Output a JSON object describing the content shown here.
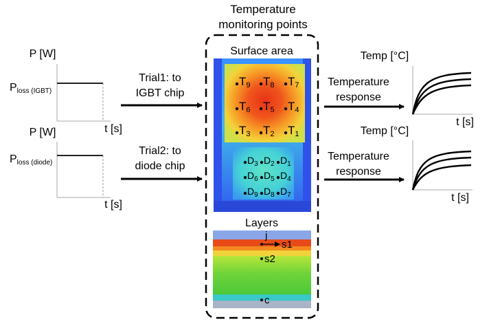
{
  "header": {
    "title_line1": "Temperature",
    "title_line2": "monitoring points"
  },
  "input_plots": [
    {
      "y_axis_label": "P [W]",
      "level_label_main": "P",
      "level_label_sub": "loss (IGBT)",
      "x_axis_label": "t [s]"
    },
    {
      "y_axis_label": "P [W]",
      "level_label_main": "P",
      "level_label_sub": "loss (diode)",
      "x_axis_label": "t [s]"
    }
  ],
  "trials": [
    {
      "line1": "Trial1: to",
      "line2": "IGBT chip"
    },
    {
      "line1": "Trial2: to",
      "line2": "diode chip"
    }
  ],
  "responses": [
    {
      "line1": "Temperature",
      "line2": "response"
    },
    {
      "line1": "Temperature",
      "line2": "response"
    }
  ],
  "output_plots": [
    {
      "y_axis_label": "Temp [°C]",
      "x_axis_label": "t [s]"
    },
    {
      "y_axis_label": "Temp [°C]",
      "x_axis_label": "t [s]"
    }
  ],
  "surface": {
    "title": "Surface area",
    "igbt_points": [
      {
        "main": "T",
        "sub": "9"
      },
      {
        "main": "T",
        "sub": "8"
      },
      {
        "main": "T",
        "sub": "7"
      },
      {
        "main": "T",
        "sub": "6"
      },
      {
        "main": "T",
        "sub": "5"
      },
      {
        "main": "T",
        "sub": "4"
      },
      {
        "main": "T",
        "sub": "3"
      },
      {
        "main": "T",
        "sub": "2"
      },
      {
        "main": "T",
        "sub": "1"
      }
    ],
    "diode_points": [
      {
        "main": "D",
        "sub": "3"
      },
      {
        "main": "D",
        "sub": "2"
      },
      {
        "main": "D",
        "sub": "1"
      },
      {
        "main": "D",
        "sub": "6"
      },
      {
        "main": "D",
        "sub": "5"
      },
      {
        "main": "D",
        "sub": "4"
      },
      {
        "main": "D",
        "sub": "9"
      },
      {
        "main": "D",
        "sub": "8"
      },
      {
        "main": "D",
        "sub": "7"
      }
    ]
  },
  "layers": {
    "title": "Layers",
    "j_label": "j",
    "points": [
      "s1",
      "s2",
      "c"
    ]
  },
  "colors": {
    "heat_blue": "#2f6bff",
    "heat_cyan": "#3cc8e0",
    "heat_green": "#7ed048",
    "heat_yellow": "#f3dc3a",
    "heat_orange": "#f58a1f",
    "heat_red": "#e8351a"
  }
}
